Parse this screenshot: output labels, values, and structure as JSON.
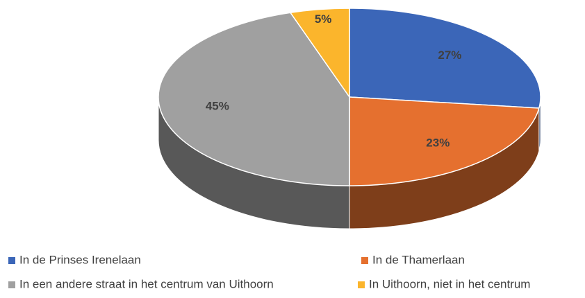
{
  "chart_data": {
    "type": "pie3d",
    "categories": [
      "In de Prinses Irenelaan",
      "In de Thamerlaan",
      "In een andere straat in het centrum van Uithoorn",
      "In Uithoorn, niet in het centrum"
    ],
    "values": [
      27,
      23,
      45,
      5
    ],
    "value_labels": [
      "27%",
      "23%",
      "45%",
      "5%"
    ],
    "colors": [
      "#3b66b8",
      "#e5702f",
      "#a0a0a0",
      "#fbb52c"
    ],
    "legend": "bottom"
  }
}
